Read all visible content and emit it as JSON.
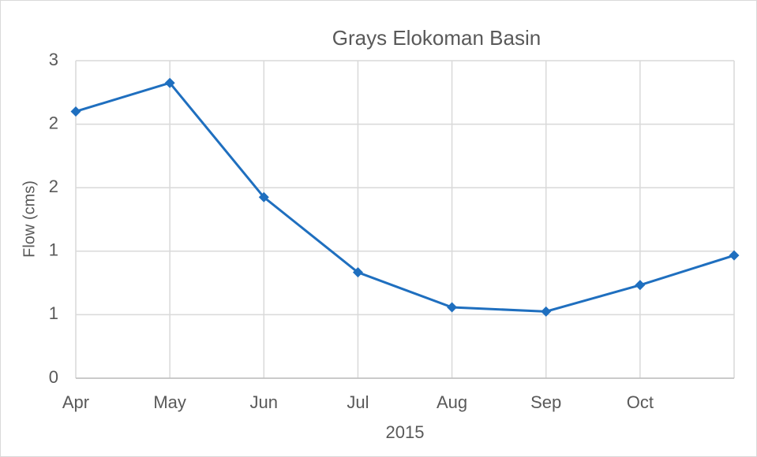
{
  "chart_data": {
    "type": "line",
    "title": "Grays Elokoman Basin",
    "x_label": "2015",
    "y_label": "Flow (cms)",
    "categories": [
      "Apr",
      "May",
      "Jun",
      "Jul",
      "Aug",
      "Sep",
      "Oct",
      null
    ],
    "series": [
      {
        "name": "Flow",
        "color": "#1f6fbf",
        "values": [
          2.52,
          2.79,
          1.71,
          1.0,
          0.67,
          0.63,
          0.88,
          1.16
        ]
      }
    ],
    "ylim": [
      0,
      3
    ],
    "yticks": [
      0,
      {
        "value": 0.6,
        "label": "1"
      },
      {
        "value": 1.2,
        "label": "1"
      },
      {
        "value": 1.8,
        "label": "2"
      },
      {
        "value": 2.4,
        "label": "2"
      },
      3
    ],
    "grid": true
  }
}
